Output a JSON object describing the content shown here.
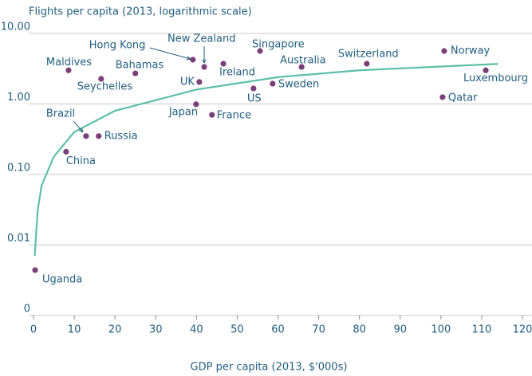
{
  "chart_data": {
    "type": "scatter",
    "y_label": "Flights per capita (2013, logarithmic scale)",
    "x_label": "GDP per capita (2013, $'000s)",
    "log_y": true,
    "grid": true,
    "xlim": [
      0,
      120
    ],
    "xticks": [
      0,
      10,
      20,
      30,
      40,
      50,
      60,
      70,
      80,
      90,
      100,
      110,
      120
    ],
    "ylim": [
      0.001,
      10
    ],
    "yticks": [
      {
        "value": 0.001,
        "label": "0"
      },
      {
        "value": 0.01,
        "label": "0.01"
      },
      {
        "value": 0.1,
        "label": "0.10"
      },
      {
        "value": 1,
        "label": "1.00"
      },
      {
        "value": 10,
        "label": "10.00"
      }
    ],
    "points": {
      "color": "#7b3f77",
      "labels": [
        "Uganda",
        "China",
        "Brazil",
        "Russia",
        "Maldives",
        "Seychelles",
        "Bahamas",
        "Hong Kong",
        "New Zealand",
        "UK",
        "Ireland",
        "Japan",
        "France",
        "US",
        "Sweden",
        "Singapore",
        "Australia",
        "Switzerland",
        "Norway",
        "Luxembourg",
        "Qatar"
      ],
      "x": [
        0.4,
        8.0,
        12.9,
        16.0,
        8.6,
        16.6,
        25.0,
        39.1,
        41.9,
        40.7,
        46.6,
        39.9,
        43.8,
        54.0,
        58.7,
        55.6,
        65.8,
        81.8,
        100.8,
        111.0,
        100.4
      ],
      "values": [
        0.0044,
        0.21,
        0.35,
        0.35,
        3.0,
        2.27,
        2.72,
        4.24,
        3.35,
        2.05,
        3.72,
        0.99,
        0.7,
        1.66,
        1.94,
        5.64,
        3.35,
        3.72,
        5.64,
        3.0,
        1.25
      ]
    },
    "trend": {
      "color": "#5cc0a8",
      "x": [
        0.3,
        1,
        2,
        5,
        10,
        20,
        40,
        60,
        80,
        100,
        114
      ],
      "values": [
        0.007,
        0.03,
        0.07,
        0.18,
        0.4,
        0.8,
        1.6,
        2.4,
        3.0,
        3.4,
        3.7
      ]
    }
  }
}
